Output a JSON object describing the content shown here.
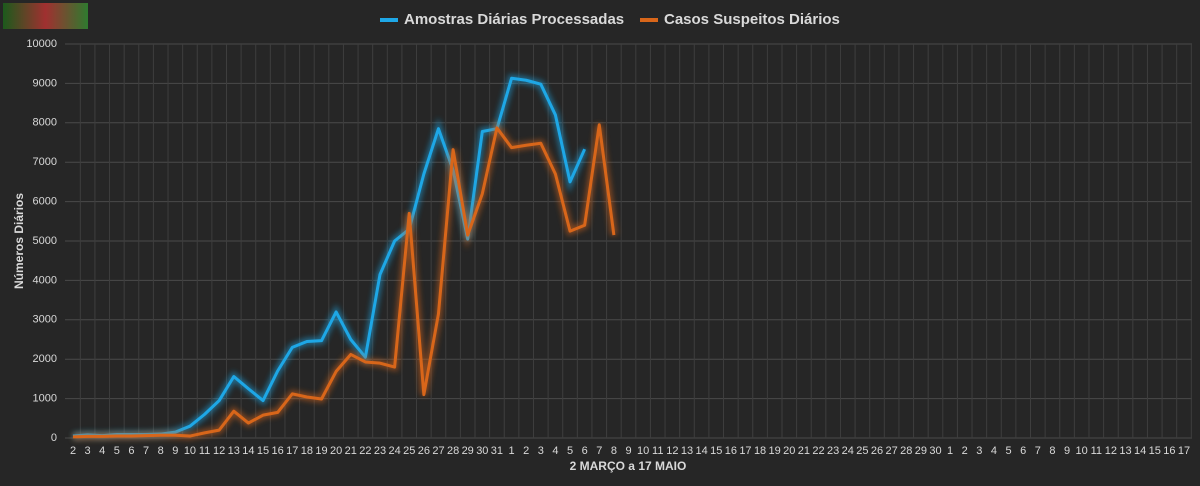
{
  "chart_data": {
    "type": "line",
    "categories": [
      "2",
      "3",
      "4",
      "5",
      "6",
      "7",
      "8",
      "9",
      "10",
      "11",
      "12",
      "13",
      "14",
      "15",
      "16",
      "17",
      "18",
      "19",
      "20",
      "21",
      "22",
      "23",
      "24",
      "25",
      "26",
      "27",
      "28",
      "29",
      "30",
      "31",
      "1",
      "2",
      "3",
      "4",
      "5",
      "6",
      "7",
      "8",
      "9",
      "10",
      "11",
      "12",
      "13",
      "14",
      "15",
      "16",
      "17",
      "18",
      "19",
      "20",
      "21",
      "22",
      "23",
      "24",
      "25",
      "26",
      "27",
      "28",
      "29",
      "30",
      "1",
      "2",
      "3",
      "4",
      "5",
      "6",
      "7",
      "8",
      "9",
      "10",
      "11",
      "12",
      "13",
      "14",
      "15",
      "16",
      "17"
    ],
    "series": [
      {
        "name": "Amostras Diárias Processadas",
        "color": "#1ea7e6",
        "values": [
          50,
          80,
          60,
          90,
          90,
          90,
          100,
          150,
          300,
          600,
          950,
          1560,
          1250,
          950,
          1700,
          2300,
          2450,
          2470,
          3200,
          2500,
          2050,
          4150,
          5000,
          5300,
          6700,
          7850,
          6800,
          5050,
          7780,
          7850,
          9130,
          9080,
          8980,
          8200,
          6500,
          7330,
          null,
          null,
          null,
          null,
          null,
          null,
          null,
          null,
          null,
          null,
          null,
          null,
          null,
          null,
          null,
          null,
          null,
          null,
          null,
          null,
          null,
          null,
          null,
          null,
          null,
          null,
          null,
          null,
          null,
          null,
          null,
          null,
          null,
          null,
          null,
          null,
          null,
          null,
          null,
          null,
          null
        ]
      },
      {
        "name": "Casos Suspeitos Diários",
        "color": "#d8661a",
        "values": [
          30,
          40,
          40,
          50,
          50,
          60,
          70,
          70,
          50,
          130,
          200,
          680,
          380,
          580,
          650,
          1120,
          1040,
          990,
          1690,
          2120,
          1930,
          1900,
          1800,
          5700,
          1100,
          3150,
          7320,
          5150,
          6200,
          7870,
          7370,
          7430,
          7480,
          6700,
          5250,
          5400,
          7950,
          5150,
          null,
          null,
          null,
          null,
          null,
          null,
          null,
          null,
          null,
          null,
          null,
          null,
          null,
          null,
          null,
          null,
          null,
          null,
          null,
          null,
          null,
          null,
          null,
          null,
          null,
          null,
          null,
          null,
          null,
          null,
          null,
          null,
          null,
          null,
          null,
          null,
          null,
          null,
          null
        ]
      }
    ],
    "ylim": [
      0,
      10000
    ],
    "yticks": [
      0,
      1000,
      2000,
      3000,
      4000,
      5000,
      6000,
      7000,
      8000,
      9000,
      10000
    ],
    "ylabel": "Números Diários",
    "xlabel": "2 MARÇO a 17 MAIO",
    "grid": true
  }
}
